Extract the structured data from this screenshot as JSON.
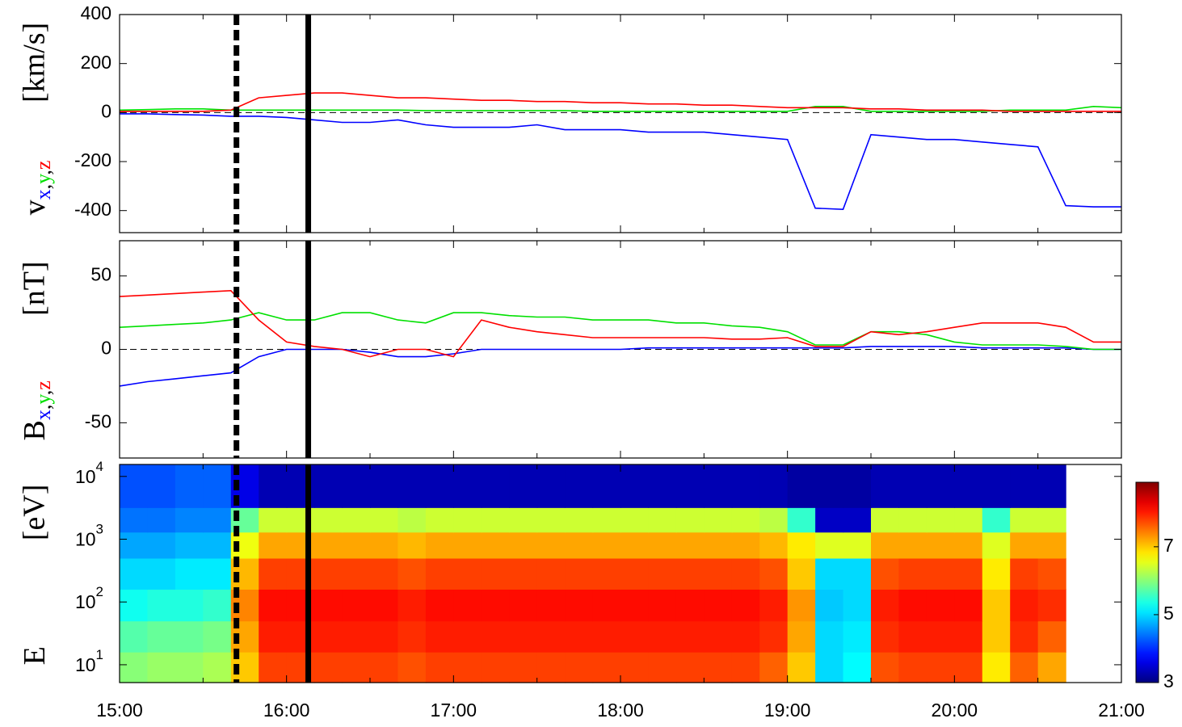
{
  "chart_data": [
    {
      "type": "line",
      "ylabel": {
        "unit": "[km/s]",
        "symbol": "v",
        "separator": ","
      },
      "x": [
        15,
        15.1667,
        15.3333,
        15.5,
        15.6667,
        15.8333,
        16,
        16.1667,
        16.3333,
        16.5,
        16.6667,
        16.8333,
        17,
        17.1667,
        17.3333,
        17.5,
        17.6667,
        17.8333,
        18,
        18.1667,
        18.3333,
        18.5,
        18.6667,
        18.8333,
        19,
        19.1667,
        19.3333,
        19.5,
        19.6667,
        19.8333,
        20,
        20.1667,
        20.3333,
        20.5,
        20.6667,
        20.8333,
        21
      ],
      "series": [
        {
          "name": "x",
          "color": "#0000ff",
          "values": [
            -5,
            -5,
            -8,
            -10,
            -15,
            -15,
            -20,
            -30,
            -40,
            -40,
            -30,
            -50,
            -60,
            -60,
            -60,
            -50,
            -70,
            -70,
            -70,
            -80,
            -80,
            -80,
            -90,
            -100,
            -110,
            -390,
            -395,
            -90,
            -100,
            -110,
            -110,
            -120,
            -130,
            -140,
            -380,
            -385,
            -385
          ]
        },
        {
          "name": "y",
          "color": "#00e000",
          "values": [
            10,
            12,
            15,
            15,
            10,
            10,
            10,
            10,
            10,
            10,
            10,
            8,
            8,
            8,
            8,
            8,
            8,
            5,
            5,
            5,
            5,
            5,
            5,
            5,
            5,
            25,
            25,
            5,
            5,
            5,
            5,
            5,
            10,
            10,
            10,
            25,
            20
          ]
        },
        {
          "name": "z",
          "color": "#ff0000",
          "values": [
            5,
            5,
            5,
            5,
            10,
            60,
            70,
            80,
            80,
            70,
            60,
            60,
            55,
            50,
            50,
            45,
            45,
            40,
            40,
            35,
            35,
            30,
            30,
            25,
            20,
            20,
            20,
            15,
            15,
            10,
            10,
            10,
            5,
            5,
            5,
            5,
            5
          ]
        }
      ],
      "xlim": [
        15,
        21
      ],
      "xticks": [
        15,
        16,
        17,
        18,
        19,
        20,
        21
      ],
      "xminor": [
        15.5,
        16.5,
        17.5,
        18.5,
        19.5,
        20.5
      ],
      "show_xticklabels": false,
      "ylim": [
        -490,
        400
      ],
      "yticks": [
        -400,
        -200,
        0,
        200,
        400
      ],
      "zero_line": true,
      "vlines": [
        {
          "x": 15.7,
          "style": "dashed"
        },
        {
          "x": 16.13,
          "style": "solid"
        }
      ]
    },
    {
      "type": "line",
      "ylabel": {
        "unit": "[nT]",
        "symbol": "B",
        "separator": ","
      },
      "x": [
        15,
        15.1667,
        15.3333,
        15.5,
        15.6667,
        15.8333,
        16,
        16.1667,
        16.3333,
        16.5,
        16.6667,
        16.8333,
        17,
        17.1667,
        17.3333,
        17.5,
        17.6667,
        17.8333,
        18,
        18.1667,
        18.3333,
        18.5,
        18.6667,
        18.8333,
        19,
        19.1667,
        19.3333,
        19.5,
        19.6667,
        19.8333,
        20,
        20.1667,
        20.3333,
        20.5,
        20.6667,
        20.8333,
        21
      ],
      "series": [
        {
          "name": "x",
          "color": "#0000ff",
          "values": [
            -25,
            -22,
            -20,
            -18,
            -16,
            -5,
            0,
            0,
            0,
            -2,
            -5,
            -5,
            -3,
            0,
            0,
            0,
            0,
            0,
            0,
            1,
            1,
            1,
            1,
            1,
            1,
            1,
            1,
            2,
            2,
            2,
            2,
            1,
            1,
            1,
            1,
            0,
            0
          ]
        },
        {
          "name": "y",
          "color": "#00e000",
          "values": [
            15,
            16,
            17,
            18,
            20,
            25,
            20,
            20,
            25,
            25,
            20,
            18,
            25,
            25,
            23,
            22,
            22,
            20,
            20,
            20,
            18,
            18,
            16,
            15,
            12,
            3,
            3,
            12,
            12,
            10,
            5,
            3,
            3,
            3,
            2,
            0,
            0
          ]
        },
        {
          "name": "z",
          "color": "#ff0000",
          "values": [
            36,
            37,
            38,
            39,
            40,
            20,
            5,
            2,
            0,
            -5,
            0,
            0,
            -5,
            20,
            15,
            12,
            10,
            8,
            8,
            8,
            8,
            8,
            7,
            7,
            8,
            2,
            2,
            12,
            10,
            12,
            15,
            18,
            18,
            18,
            15,
            5,
            5
          ]
        }
      ],
      "xlim": [
        15,
        21
      ],
      "xticks": [
        15,
        16,
        17,
        18,
        19,
        20,
        21
      ],
      "xminor": [
        15.5,
        16.5,
        17.5,
        18.5,
        19.5,
        20.5
      ],
      "show_xticklabels": false,
      "ylim": [
        -74,
        74
      ],
      "yticks": [
        -50,
        0,
        50
      ],
      "zero_line": true,
      "vlines": [
        {
          "x": 15.7,
          "style": "dashed"
        },
        {
          "x": 16.13,
          "style": "solid"
        }
      ]
    },
    {
      "type": "heatmap",
      "ylabel": {
        "unit": "[eV]",
        "symbol": "E"
      },
      "x_edges": [
        15,
        15.1667,
        15.3333,
        15.5,
        15.6667,
        15.8333,
        16,
        16.1667,
        16.3333,
        16.5,
        16.6667,
        16.8333,
        17,
        17.1667,
        17.3333,
        17.5,
        17.6667,
        17.8333,
        18,
        18.1667,
        18.3333,
        18.5,
        18.6667,
        18.8333,
        19,
        19.1667,
        19.3333,
        19.5,
        19.6667,
        19.8333,
        20,
        20.1667,
        20.3333,
        20.5,
        20.6667
      ],
      "y_edges": [
        5.2,
        16,
        50,
        160,
        500,
        1300,
        3200,
        15500
      ],
      "z": [
        [
          6.0,
          6.1,
          6.1,
          6.2,
          7.0,
          7.8,
          7.8,
          7.8,
          7.8,
          7.8,
          7.7,
          7.8,
          7.8,
          7.8,
          7.8,
          7.8,
          7.8,
          7.8,
          7.8,
          7.8,
          7.8,
          7.8,
          7.8,
          7.6,
          7.0,
          5.0,
          5.2,
          7.7,
          7.8,
          7.8,
          7.8,
          6.8,
          7.6,
          7.2
        ],
        [
          5.7,
          5.8,
          5.8,
          5.9,
          7.2,
          8.0,
          8.0,
          8.0,
          8.0,
          8.0,
          7.9,
          8.0,
          8.0,
          8.0,
          8.0,
          8.0,
          8.0,
          8.0,
          8.0,
          8.0,
          8.0,
          8.0,
          8.0,
          7.9,
          7.2,
          5.0,
          5.1,
          7.9,
          8.0,
          8.0,
          8.0,
          7.0,
          7.9,
          7.6
        ],
        [
          5.3,
          5.4,
          5.4,
          5.5,
          7.4,
          8.1,
          8.1,
          8.1,
          8.1,
          8.1,
          8.0,
          8.1,
          8.1,
          8.1,
          8.1,
          8.1,
          8.1,
          8.1,
          8.1,
          8.1,
          8.1,
          8.1,
          8.1,
          8.0,
          7.3,
          4.9,
          5.0,
          8.0,
          8.1,
          8.1,
          8.1,
          7.0,
          8.0,
          7.9
        ],
        [
          5.0,
          5.0,
          5.1,
          5.1,
          7.1,
          7.8,
          7.8,
          7.8,
          7.8,
          7.8,
          7.7,
          7.8,
          7.8,
          7.8,
          7.8,
          7.8,
          7.8,
          7.8,
          7.8,
          7.8,
          7.8,
          7.8,
          7.8,
          7.7,
          7.0,
          5.0,
          5.0,
          7.7,
          7.8,
          7.8,
          7.8,
          6.8,
          7.8,
          7.7
        ],
        [
          4.7,
          4.7,
          4.8,
          4.8,
          6.6,
          7.2,
          7.2,
          7.2,
          7.2,
          7.2,
          7.1,
          7.2,
          7.2,
          7.2,
          7.2,
          7.2,
          7.2,
          7.2,
          7.2,
          7.2,
          7.2,
          7.2,
          7.2,
          7.1,
          6.8,
          6.5,
          6.5,
          7.2,
          7.2,
          7.2,
          7.2,
          6.5,
          7.2,
          7.2
        ],
        [
          4.4,
          4.4,
          4.5,
          4.5,
          5.8,
          6.4,
          6.4,
          6.4,
          6.4,
          6.4,
          6.3,
          6.4,
          6.4,
          6.4,
          6.4,
          6.4,
          6.4,
          6.4,
          6.4,
          6.4,
          6.4,
          6.4,
          6.4,
          6.3,
          5.5,
          3.4,
          3.4,
          6.4,
          6.4,
          6.4,
          6.4,
          5.5,
          6.4,
          6.4
        ],
        [
          4.2,
          4.2,
          4.3,
          4.3,
          3.6,
          3.3,
          3.3,
          3.3,
          3.3,
          3.3,
          3.3,
          3.3,
          3.3,
          3.3,
          3.3,
          3.3,
          3.3,
          3.3,
          3.3,
          3.3,
          3.3,
          3.3,
          3.3,
          3.3,
          3.2,
          3.2,
          3.2,
          3.3,
          3.3,
          3.3,
          3.3,
          3.3,
          3.3,
          3.3
        ]
      ],
      "colormap": "jet",
      "clim": [
        3,
        8.9
      ],
      "cticks": [
        3,
        5,
        7
      ],
      "xlim": [
        15,
        21
      ],
      "xticks": [
        {
          "value": 15,
          "label": "15:00"
        },
        {
          "value": 16,
          "label": "16:00"
        },
        {
          "value": 17,
          "label": "17:00"
        },
        {
          "value": 18,
          "label": "18:00"
        },
        {
          "value": 19,
          "label": "19:00"
        },
        {
          "value": 20,
          "label": "20:00"
        },
        {
          "value": 21,
          "label": "21:00"
        }
      ],
      "xminor": [
        15.5,
        16.5,
        17.5,
        18.5,
        19.5,
        20.5
      ],
      "show_xticklabels": true,
      "ylim": [
        5.2,
        15500
      ],
      "log": true,
      "yticks": [
        {
          "value": 10,
          "label": "10",
          "exponent": "1"
        },
        {
          "value": 100,
          "label": "10",
          "exponent": "2"
        },
        {
          "value": 1000,
          "label": "10",
          "exponent": "3"
        },
        {
          "value": 10000,
          "label": "10",
          "exponent": "4"
        }
      ],
      "vlines": [
        {
          "x": 15.7,
          "style": "dashed"
        },
        {
          "x": 16.13,
          "style": "solid"
        }
      ]
    }
  ]
}
